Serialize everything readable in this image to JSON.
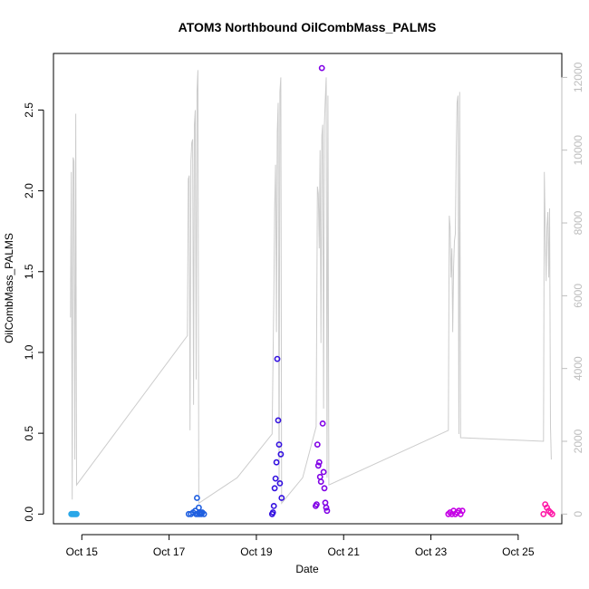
{
  "chart_data": {
    "type": "scatter",
    "title": "ATOM3 Northbound OilCombMass_PALMS",
    "xlabel": "Date",
    "ylabel": "OilCombMass_PALMS",
    "xlim_days": [
      14.35,
      26.0
    ],
    "ylim": [
      -0.06,
      2.85
    ],
    "y2lim": [
      -266,
      12657
    ],
    "x_ticks": [
      {
        "value": 15,
        "label": "Oct 15"
      },
      {
        "value": 17,
        "label": "Oct 17"
      },
      {
        "value": 19,
        "label": "Oct 19"
      },
      {
        "value": 21,
        "label": "Oct 21"
      },
      {
        "value": 23,
        "label": "Oct 23"
      },
      {
        "value": 25,
        "label": "Oct 25"
      }
    ],
    "y_ticks": [
      {
        "value": 0.0,
        "label": "0.0"
      },
      {
        "value": 0.5,
        "label": "0.5"
      },
      {
        "value": 1.0,
        "label": "1.0"
      },
      {
        "value": 1.5,
        "label": "1.5"
      },
      {
        "value": 2.0,
        "label": "2.0"
      },
      {
        "value": 2.5,
        "label": "2.5"
      }
    ],
    "y2_ticks": [
      {
        "value": 0,
        "label": "0"
      },
      {
        "value": 2000,
        "label": "2000"
      },
      {
        "value": 4000,
        "label": "4000"
      },
      {
        "value": 6000,
        "label": "6000"
      },
      {
        "value": 8000,
        "label": "8000"
      },
      {
        "value": 10000,
        "label": "10000"
      },
      {
        "value": 12000,
        "label": "12000"
      }
    ],
    "grid": false,
    "altitude_trace": {
      "color": "#cccccc",
      "points": [
        [
          14.74,
          5400
        ],
        [
          14.76,
          9400
        ],
        [
          14.78,
          400
        ],
        [
          14.8,
          9800
        ],
        [
          14.82,
          9700
        ],
        [
          14.84,
          1500
        ],
        [
          14.86,
          11000
        ],
        [
          14.88,
          800
        ],
        [
          17.42,
          4900
        ],
        [
          17.44,
          9200
        ],
        [
          17.46,
          9300
        ],
        [
          17.48,
          2300
        ],
        [
          17.5,
          9700
        ],
        [
          17.52,
          10200
        ],
        [
          17.54,
          10300
        ],
        [
          17.56,
          3000
        ],
        [
          17.58,
          10700
        ],
        [
          17.6,
          11100
        ],
        [
          17.62,
          3700
        ],
        [
          17.64,
          11600
        ],
        [
          17.66,
          12200
        ],
        [
          17.68,
          300
        ],
        [
          18.56,
          1000
        ],
        [
          19.36,
          2200
        ],
        [
          19.4,
          6000
        ],
        [
          19.42,
          8400
        ],
        [
          19.44,
          9600
        ],
        [
          19.46,
          5000
        ],
        [
          19.48,
          10500
        ],
        [
          19.5,
          11300
        ],
        [
          19.52,
          800
        ],
        [
          19.54,
          11600
        ],
        [
          19.56,
          12000
        ],
        [
          19.58,
          300
        ],
        [
          20.06,
          1000
        ],
        [
          20.37,
          2400
        ],
        [
          20.4,
          9000
        ],
        [
          20.42,
          8800
        ],
        [
          20.44,
          7300
        ],
        [
          20.46,
          10000
        ],
        [
          20.48,
          4700
        ],
        [
          20.5,
          10400
        ],
        [
          20.52,
          10700
        ],
        [
          20.54,
          2900
        ],
        [
          20.56,
          10700
        ],
        [
          20.58,
          11400
        ],
        [
          20.6,
          12000
        ],
        [
          20.62,
          1000
        ],
        [
          20.64,
          11500
        ],
        [
          20.66,
          800
        ],
        [
          23.4,
          2300
        ],
        [
          23.42,
          8200
        ],
        [
          23.44,
          7900
        ],
        [
          23.46,
          6500
        ],
        [
          23.48,
          7300
        ],
        [
          23.5,
          5000
        ],
        [
          23.52,
          6800
        ],
        [
          23.54,
          7500
        ],
        [
          23.56,
          7700
        ],
        [
          23.58,
          10000
        ],
        [
          23.6,
          11300
        ],
        [
          23.62,
          11500
        ],
        [
          23.64,
          2200
        ],
        [
          23.66,
          11600
        ],
        [
          23.68,
          2100
        ],
        [
          25.58,
          2000
        ],
        [
          25.6,
          9400
        ],
        [
          25.62,
          7800
        ],
        [
          25.64,
          6400
        ],
        [
          25.66,
          7900
        ],
        [
          25.68,
          8300
        ],
        [
          25.7,
          6500
        ],
        [
          25.72,
          8400
        ],
        [
          25.74,
          2400
        ],
        [
          25.76,
          1500
        ]
      ]
    },
    "series": [
      {
        "color": "#2aa7e8",
        "x": [
          14.76,
          14.78,
          14.8,
          14.82,
          14.84,
          14.86,
          14.88
        ],
        "y": [
          0.0,
          0.0,
          0.0,
          0.0,
          0.0,
          0.0,
          0.0
        ]
      },
      {
        "color": "#1f5fe0",
        "x": [
          17.45,
          17.5,
          17.55,
          17.6,
          17.62,
          17.64,
          17.66,
          17.68,
          17.7,
          17.72,
          17.74,
          17.76,
          17.8
        ],
        "y": [
          0.0,
          0.0,
          0.01,
          0.02,
          0.0,
          0.1,
          0.0,
          0.04,
          0.0,
          0.01,
          0.0,
          0.01,
          0.0
        ]
      },
      {
        "color": "#3310e0",
        "x": [
          19.36,
          19.38,
          19.4,
          19.42,
          19.44,
          19.46,
          19.48,
          19.5,
          19.52,
          19.54,
          19.56,
          19.58
        ],
        "y": [
          0.0,
          0.01,
          0.05,
          0.16,
          0.22,
          0.32,
          0.96,
          0.58,
          0.43,
          0.19,
          0.37,
          0.1
        ]
      },
      {
        "color": "#8000e6",
        "x": [
          20.36,
          20.38,
          20.4,
          20.42,
          20.44,
          20.46,
          20.48,
          20.5,
          20.52,
          20.54,
          20.56,
          20.58,
          20.6,
          20.62
        ],
        "y": [
          0.05,
          0.06,
          0.43,
          0.3,
          0.32,
          0.23,
          0.2,
          2.76,
          0.56,
          0.26,
          0.16,
          0.07,
          0.04,
          0.02
        ]
      },
      {
        "color": "#c500e6",
        "x": [
          23.4,
          23.44,
          23.48,
          23.52,
          23.56,
          23.6,
          23.64,
          23.68,
          23.72
        ],
        "y": [
          0.0,
          0.01,
          0.0,
          0.02,
          0.0,
          0.01,
          0.02,
          0.0,
          0.02
        ]
      },
      {
        "color": "#ff1aa8",
        "x": [
          25.58,
          25.62,
          25.66,
          25.7,
          25.74,
          25.78
        ],
        "y": [
          0.0,
          0.06,
          0.04,
          0.02,
          0.01,
          0.0
        ]
      }
    ]
  }
}
